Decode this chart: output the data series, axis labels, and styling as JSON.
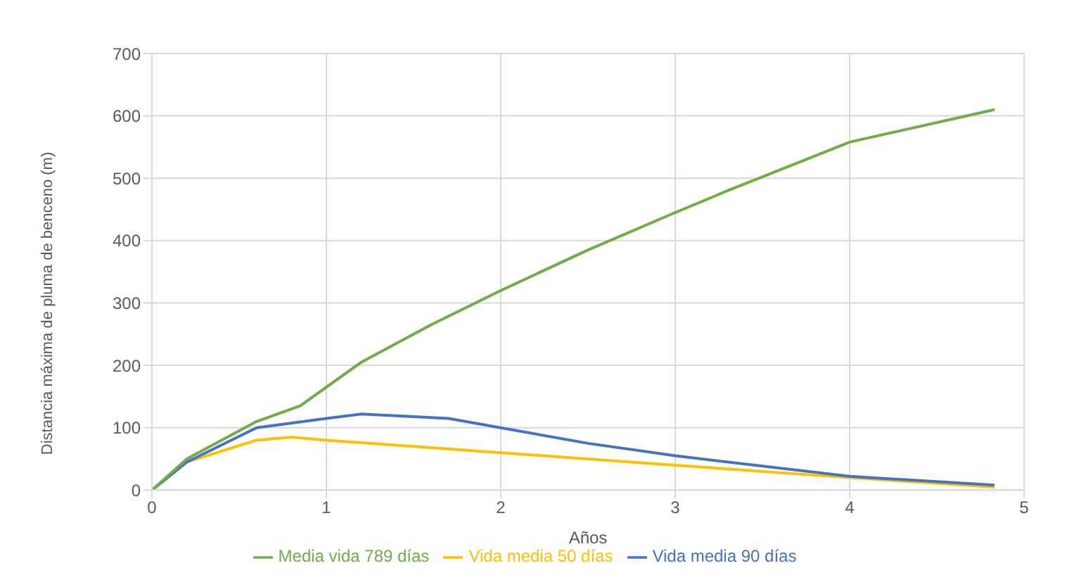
{
  "chart_data": {
    "type": "line",
    "xlabel": "Años",
    "ylabel": "Distancia máxima de pluma de benceno (m)",
    "xlim": [
      0,
      5
    ],
    "xticks": [
      0,
      1,
      2,
      3,
      4,
      5
    ],
    "ylim": [
      0,
      700
    ],
    "yticks": [
      0,
      100,
      200,
      300,
      400,
      500,
      600,
      700
    ],
    "grid": true,
    "legend": "bottom",
    "marker": "none",
    "series": [
      {
        "name": "Vida media 50 días",
        "color": "#ffc000",
        "x": [
          0,
          0.2,
          0.6,
          0.8,
          1,
          2,
          3,
          4,
          4.83
        ],
        "values": [
          0,
          45,
          80,
          85,
          80,
          60,
          40,
          20,
          5
        ]
      },
      {
        "name": "Vida media 90 días",
        "color": "#4472c4",
        "x": [
          0,
          0.2,
          0.6,
          1,
          1.2,
          1.7,
          2,
          2.5,
          3,
          4,
          4.83
        ],
        "values": [
          0,
          45,
          100,
          115,
          122,
          115,
          100,
          75,
          55,
          22,
          8
        ]
      },
      {
        "name": "Media vida 789 días",
        "color": "#70ad47",
        "x": [
          0,
          0.2,
          0.6,
          0.85,
          1.2,
          1.6,
          2,
          2.5,
          3,
          3.3,
          4,
          4.83
        ],
        "values": [
          0,
          50,
          110,
          135,
          205,
          265,
          320,
          385,
          445,
          480,
          558,
          610
        ]
      }
    ]
  }
}
